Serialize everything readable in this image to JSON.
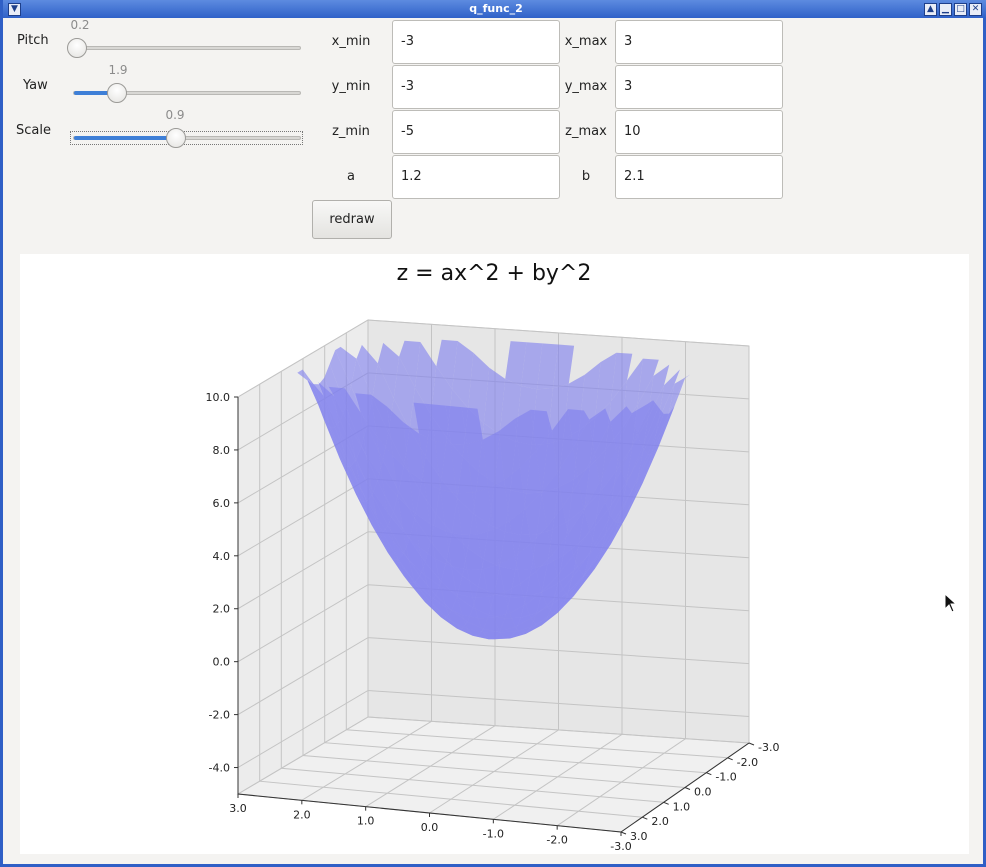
{
  "window": {
    "title": "q_func_2"
  },
  "sliders": [
    {
      "label": "Pitch",
      "value_text": "0.2",
      "fraction": 0.03
    },
    {
      "label": "Yaw",
      "value_text": "1.9",
      "fraction": 0.19
    },
    {
      "label": "Scale",
      "value_text": "0.9",
      "fraction": 0.45
    }
  ],
  "fields": {
    "x_min": {
      "label": "x_min",
      "value": "-3"
    },
    "x_max": {
      "label": "x_max",
      "value": "3"
    },
    "y_min": {
      "label": "y_min",
      "value": "-3"
    },
    "y_max": {
      "label": "y_max",
      "value": "3"
    },
    "z_min": {
      "label": "z_min",
      "value": "-5"
    },
    "z_max": {
      "label": "z_max",
      "value": "10"
    },
    "a": {
      "label": "a",
      "value": "1.2"
    },
    "b": {
      "label": "b",
      "value": "2.1"
    }
  },
  "redraw_label": "redraw",
  "chart_data": {
    "type": "surface-3d",
    "title": "z = ax^2 + by^2",
    "x_range": [
      -3,
      3
    ],
    "y_range": [
      -3,
      3
    ],
    "z_range": [
      -5,
      10
    ],
    "a": 1.2,
    "b": 2.1,
    "z_ticks": [
      "-4.0",
      "-2.0",
      "0.0",
      "2.0",
      "4.0",
      "6.0",
      "8.0",
      "10.0"
    ],
    "x_ticks": [
      "3.0",
      "2.0",
      "1.0",
      "0.0",
      "-1.0",
      "-2.0",
      "-3.0"
    ],
    "y_ticks": [
      "-3.0",
      "-2.0",
      "-1.0",
      "0.0",
      "1.0",
      "2.0",
      "3.0"
    ],
    "surface_color": "#8080ee",
    "pane_color": "#e6e6e6",
    "grid": true
  }
}
